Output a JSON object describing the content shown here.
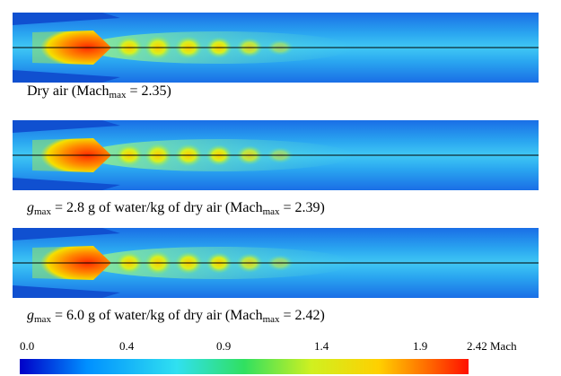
{
  "captions": [
    [
      {
        "text": "Dry air (Mach"
      },
      {
        "sub": "max"
      },
      {
        "text": " = 2.35)"
      }
    ],
    [
      {
        "italic": "g"
      },
      {
        "sub": "max"
      },
      {
        "text": " = 2.8 g of water/kg of dry air (Mach"
      },
      {
        "sub": "max"
      },
      {
        "text": " = 2.39)"
      }
    ],
    [
      {
        "italic": "g"
      },
      {
        "sub": "max"
      },
      {
        "text": " = 6.0 g of water/kg of dry air (Mach"
      },
      {
        "sub": "max"
      },
      {
        "text": " = 2.42)"
      }
    ]
  ],
  "colorbar": {
    "labels": [
      "0.0",
      "0.4",
      "0.9",
      "1.4",
      "1.9",
      "2.42 Mach"
    ]
  }
}
